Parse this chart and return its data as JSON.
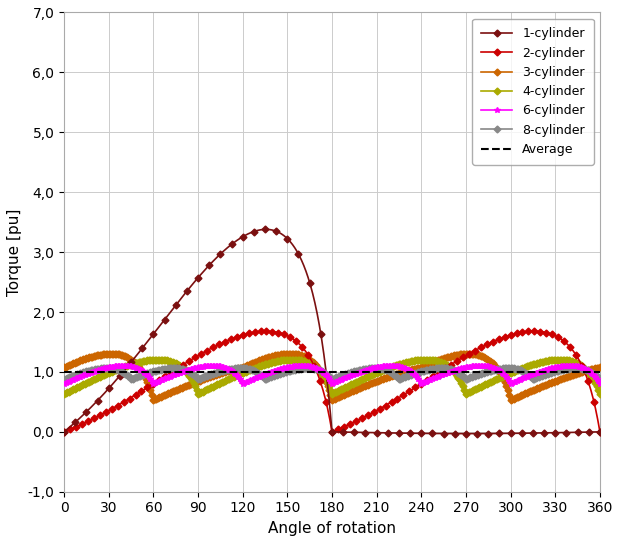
{
  "title": "",
  "xlabel": "Angle of rotation",
  "ylabel": "Torque [pu]",
  "xlim": [
    0,
    360
  ],
  "ylim": [
    -1.0,
    7.0
  ],
  "xticks": [
    0,
    30,
    60,
    90,
    120,
    150,
    180,
    210,
    240,
    270,
    300,
    330,
    360
  ],
  "yticks": [
    -1.0,
    0.0,
    1.0,
    2.0,
    3.0,
    4.0,
    5.0,
    6.0,
    7.0
  ],
  "ytick_labels": [
    "-1,0",
    "0,0",
    "1,0",
    "2,0",
    "3,0",
    "4,0",
    "5,0",
    "6,0",
    "7,0"
  ],
  "colors": {
    "1cyl": "#7B1010",
    "2cyl": "#CC0000",
    "3cyl": "#CC6600",
    "4cyl": "#AAAA00",
    "6cyl": "#FF00FF",
    "8cyl": "#888888",
    "avg": "#000000"
  },
  "legend": [
    "1-cylinder",
    "2-cylinder",
    "3-cylinder",
    "4-cylinder",
    "6-cylinder",
    "8-cylinder",
    "Average"
  ],
  "figsize": [
    6.2,
    5.43
  ],
  "dpi": 100
}
